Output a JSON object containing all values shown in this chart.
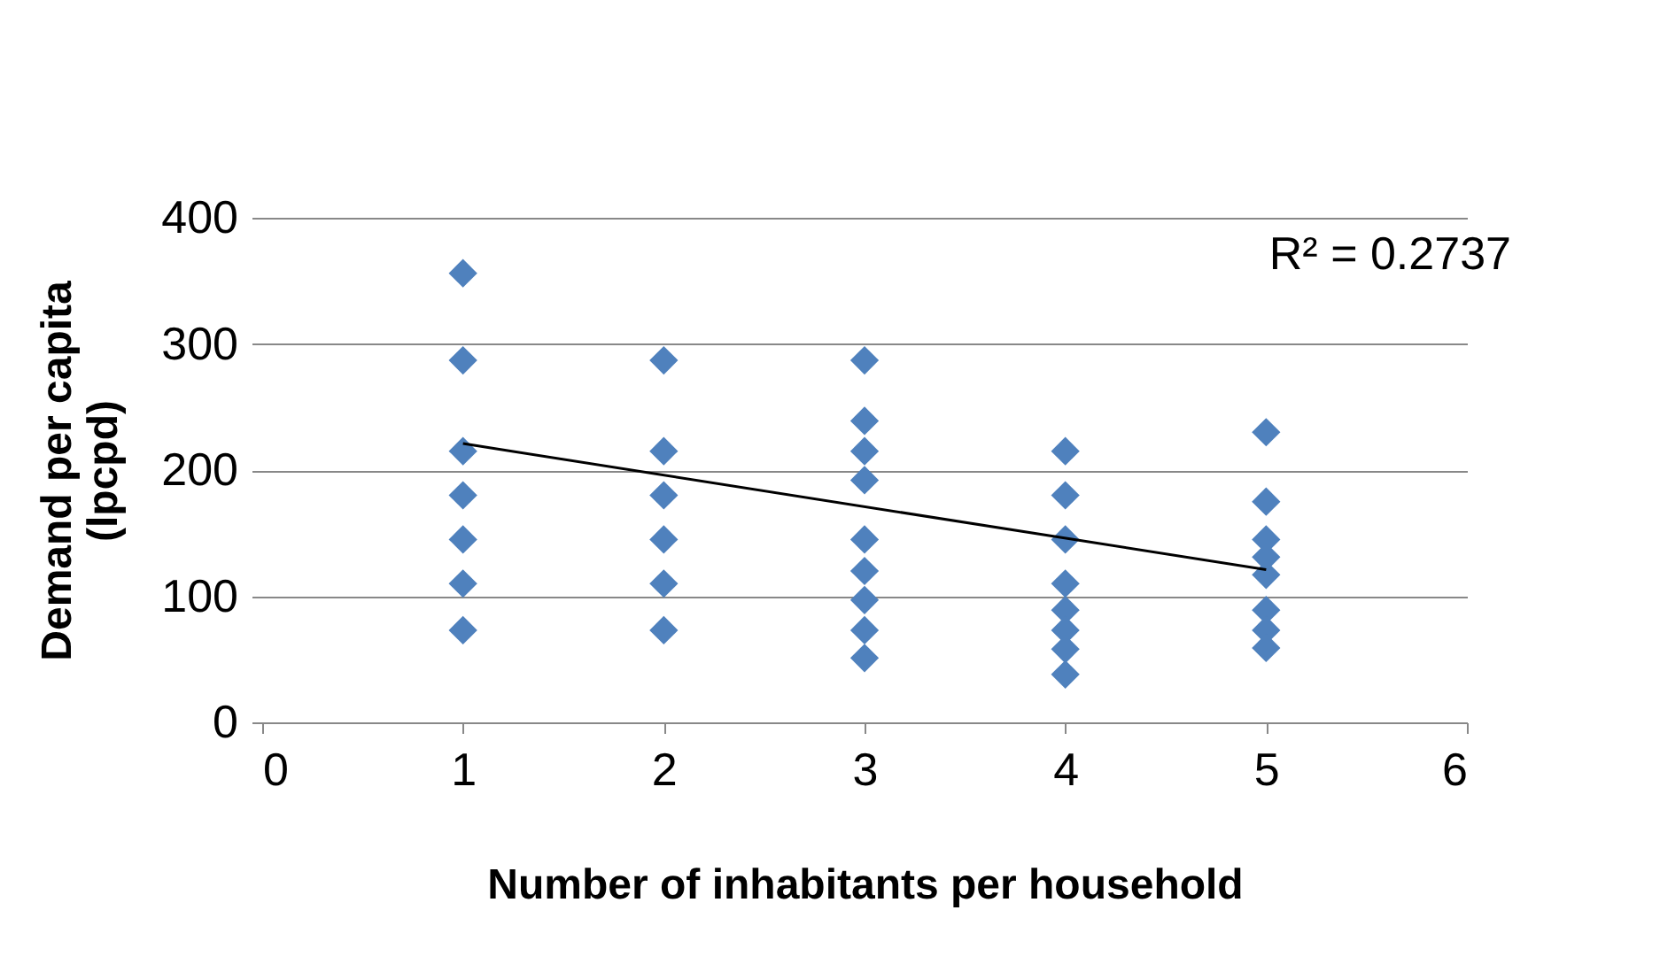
{
  "chart_data": {
    "type": "scatter",
    "xlabel": "Number of inhabitants per household",
    "ylabel": "Demand per capita\n(lpcpd)",
    "xlim": [
      0,
      6
    ],
    "xticks": [
      0,
      1,
      2,
      3,
      4,
      5,
      6
    ],
    "ylim": [
      0,
      400
    ],
    "yticks": [
      0,
      100,
      200,
      300,
      400
    ],
    "grid": "y",
    "marker": "diamond",
    "annotations": [
      "R² = 0.2737"
    ],
    "series": [
      {
        "color": "#4f81bd",
        "x": [
          1,
          1,
          1,
          1,
          1,
          1,
          1,
          2,
          2,
          2,
          2,
          2,
          2,
          3,
          3,
          3,
          3,
          3,
          3,
          3,
          3,
          3,
          4,
          4,
          4,
          4,
          4,
          4,
          4,
          4,
          5,
          5,
          5,
          5,
          5,
          5,
          5,
          5
        ],
        "values": [
          356,
          287,
          215,
          180,
          145,
          110,
          73,
          287,
          215,
          180,
          145,
          110,
          73,
          287,
          239,
          215,
          192,
          145,
          120,
          97,
          73,
          51,
          215,
          180,
          145,
          110,
          89,
          73,
          58,
          38,
          230,
          175,
          145,
          131,
          117,
          89,
          73,
          59
        ]
      },
      {
        "type": "line",
        "color": "#000000",
        "marker": "none",
        "x": [
          1,
          5
        ],
        "values": [
          221,
          121
        ]
      }
    ]
  }
}
